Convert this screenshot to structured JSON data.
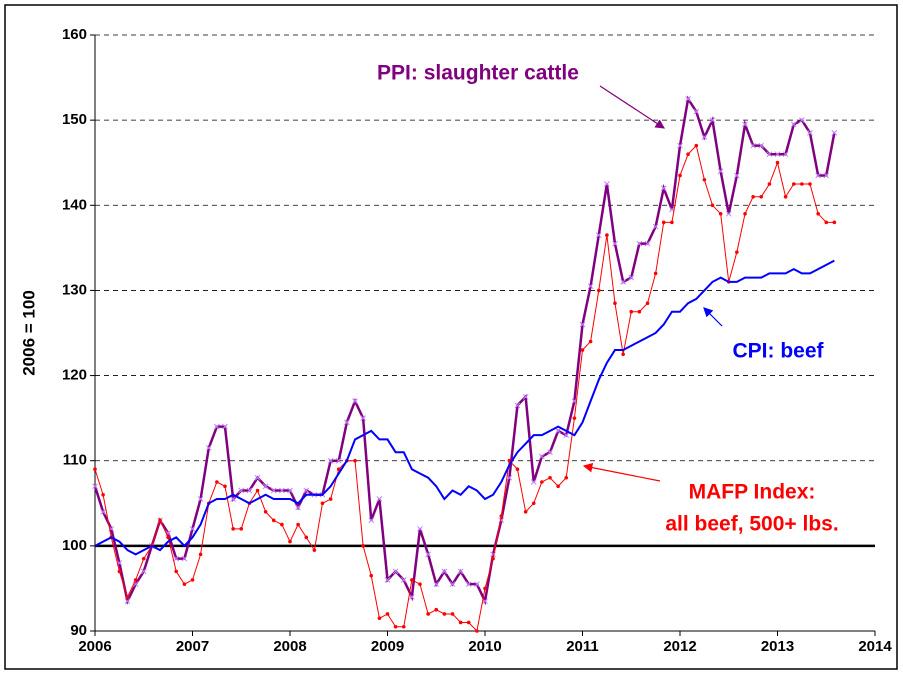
{
  "chart_data": {
    "type": "line",
    "y_label": "2006 = 100",
    "annotations": [
      "PPI: slaughter cattle",
      "CPI: beef",
      "MAFP Index:",
      "all beef, 500+ lbs."
    ],
    "xlim": [
      2006,
      2014
    ],
    "xticks": [
      2006,
      2007,
      2008,
      2009,
      2010,
      2011,
      2012,
      2013,
      2014
    ],
    "ylim": [
      90,
      160
    ],
    "yticks": [
      90,
      100,
      110,
      120,
      130,
      140,
      150,
      160
    ],
    "grid": true,
    "reference_line": 100,
    "x": [
      2006,
      2006.083,
      2006.167,
      2006.25,
      2006.333,
      2006.417,
      2006.5,
      2006.583,
      2006.667,
      2006.75,
      2006.833,
      2006.917,
      2007,
      2007.083,
      2007.167,
      2007.25,
      2007.333,
      2007.417,
      2007.5,
      2007.583,
      2007.667,
      2007.75,
      2007.833,
      2007.917,
      2008,
      2008.083,
      2008.167,
      2008.25,
      2008.333,
      2008.417,
      2008.5,
      2008.583,
      2008.667,
      2008.75,
      2008.833,
      2008.917,
      2009,
      2009.083,
      2009.167,
      2009.25,
      2009.333,
      2009.417,
      2009.5,
      2009.583,
      2009.667,
      2009.75,
      2009.833,
      2009.917,
      2010,
      2010.083,
      2010.167,
      2010.25,
      2010.333,
      2010.417,
      2010.5,
      2010.583,
      2010.667,
      2010.75,
      2010.833,
      2010.917,
      2011,
      2011.083,
      2011.167,
      2011.25,
      2011.333,
      2011.417,
      2011.5,
      2011.583,
      2011.667,
      2011.75,
      2011.833,
      2011.917,
      2012,
      2012.083,
      2012.167,
      2012.25,
      2012.333,
      2012.417,
      2012.5,
      2012.583,
      2012.667,
      2012.75,
      2012.833,
      2012.917,
      2013,
      2013.083,
      2013.167,
      2013.25,
      2013.333,
      2013.417,
      2013.5,
      2013.583
    ],
    "series": [
      {
        "name": "PPI: slaughter cattle",
        "color": "#800080",
        "marker": "x",
        "values": [
          107,
          104,
          102,
          98,
          93.5,
          95.5,
          97,
          100,
          103,
          101.5,
          98.5,
          98.5,
          102,
          105.5,
          111.5,
          114,
          114,
          105.5,
          106.5,
          106.5,
          108,
          107,
          106.5,
          106.5,
          106.5,
          104.5,
          106.5,
          106,
          106,
          110,
          110,
          114.5,
          117,
          115,
          103,
          105.5,
          96,
          97,
          96,
          94,
          102,
          99,
          95.5,
          97,
          95.5,
          97,
          95.5,
          95.5,
          93.5,
          99,
          103,
          108,
          116.5,
          117.5,
          107.5,
          110.5,
          111,
          113.5,
          113,
          117,
          126,
          130.5,
          136.5,
          142.5,
          135.5,
          131,
          131.5,
          135.5,
          135.5,
          137.5,
          142,
          139.5,
          147,
          152.5,
          151,
          148,
          150,
          144,
          139,
          143.5,
          149.5,
          147,
          147,
          146,
          146,
          146,
          149.5,
          150,
          148.5,
          143.5,
          143.5,
          148.5
        ]
      },
      {
        "name": "MAFP Index: all beef, 500+ lbs.",
        "color": "#ff0000",
        "marker": "dot",
        "values": [
          109,
          106,
          101,
          97,
          94,
          96,
          98.5,
          100,
          103,
          101,
          97,
          95.5,
          96,
          99,
          105,
          107.5,
          107,
          102,
          102,
          105,
          106.5,
          104,
          103,
          102.5,
          100.5,
          102.5,
          101,
          99.5,
          105,
          105.5,
          109,
          110,
          110,
          100,
          96.5,
          91.5,
          92,
          90.5,
          90.5,
          96,
          95.5,
          92,
          92.5,
          92,
          92,
          91,
          91,
          90,
          95,
          98.5,
          103.5,
          110,
          109,
          104,
          105,
          107.5,
          108,
          107,
          108,
          115,
          123,
          124,
          130,
          136.5,
          128.5,
          122.5,
          127.5,
          127.5,
          128.5,
          132,
          138,
          138,
          143.5,
          146,
          147,
          143,
          140,
          139,
          131,
          134.5,
          139,
          141,
          141,
          142.5,
          145,
          141,
          142.5,
          142.5,
          142.5,
          139,
          138,
          138
        ]
      },
      {
        "name": "CPI: beef",
        "color": "#0000ff",
        "marker": "none",
        "values": [
          100,
          100.5,
          101,
          100.5,
          99.5,
          99,
          99.5,
          100,
          99.5,
          100.5,
          101,
          100,
          101,
          102.5,
          105,
          105.5,
          105.5,
          106,
          105.5,
          105,
          105.5,
          106,
          105.5,
          105.5,
          105.5,
          105,
          106,
          106,
          106,
          107,
          108.5,
          110,
          112.5,
          113,
          113.5,
          112.5,
          112.5,
          111,
          111,
          109,
          108.5,
          108,
          107,
          105.5,
          106.5,
          106,
          107,
          106.5,
          105.5,
          106,
          107.5,
          109.5,
          111,
          112,
          113,
          113,
          113.5,
          114,
          113.5,
          113,
          114.5,
          117,
          119.5,
          121.5,
          123,
          123,
          123.5,
          124,
          124.5,
          125,
          126,
          127.5,
          127.5,
          128.5,
          129,
          130,
          131,
          131.5,
          131,
          131,
          131.5,
          131.5,
          131.5,
          132,
          132,
          132,
          132.5,
          132,
          132,
          132.5,
          133,
          133.5
        ]
      }
    ]
  }
}
